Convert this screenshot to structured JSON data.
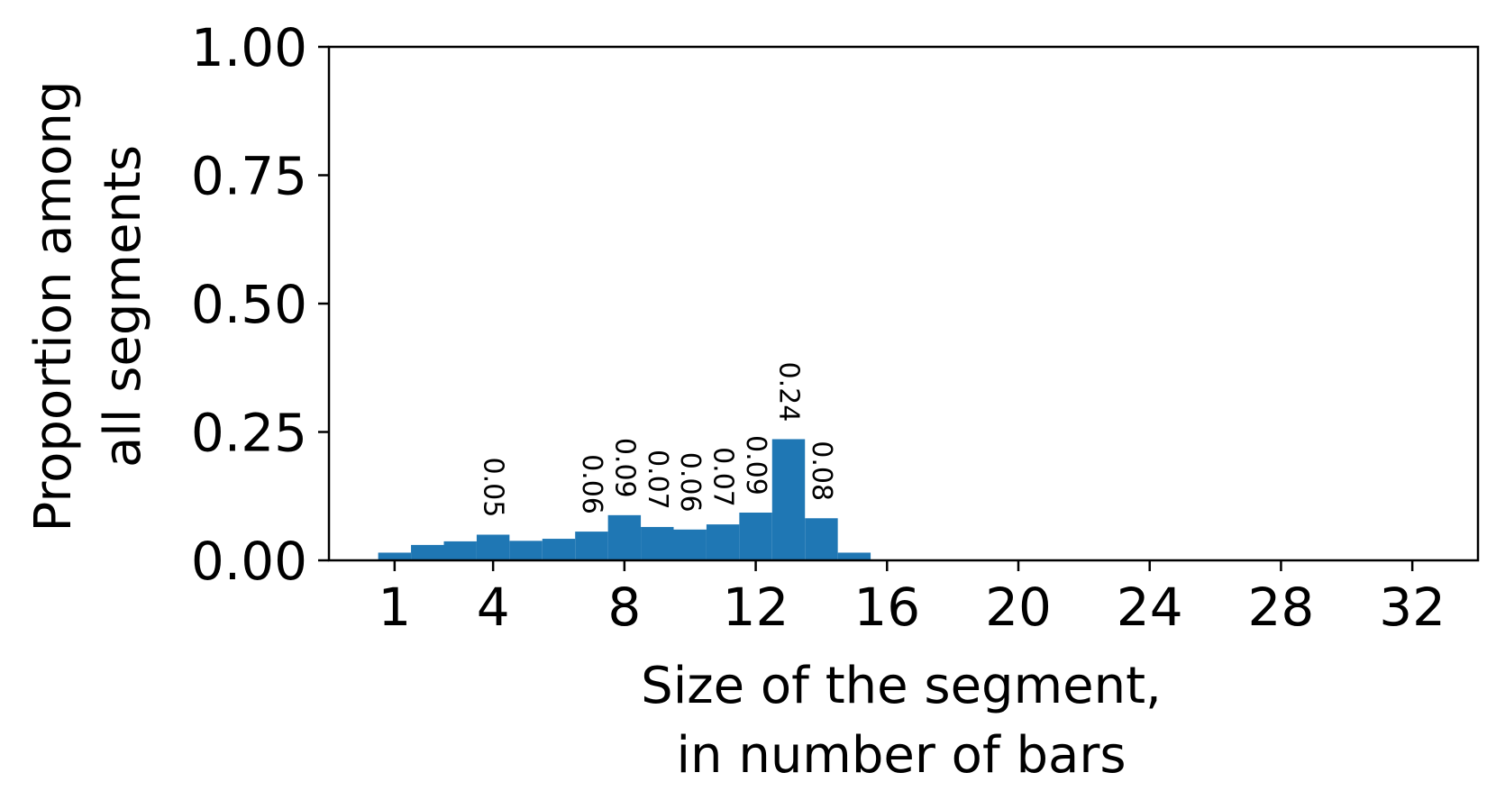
{
  "chart_data": {
    "type": "bar",
    "x": [
      1,
      2,
      3,
      4,
      5,
      6,
      7,
      8,
      9,
      10,
      11,
      12,
      13,
      14,
      15,
      16,
      17,
      18,
      19,
      20,
      21,
      22,
      23,
      24,
      25,
      26,
      27,
      28,
      29,
      30,
      31,
      32
    ],
    "values": [
      0.015,
      0.03,
      0.037,
      0.05,
      0.038,
      0.042,
      0.056,
      0.088,
      0.065,
      0.06,
      0.07,
      0.093,
      0.236,
      0.082,
      0.015,
      0.001,
      0.0005,
      0.0005,
      0.0005,
      0.0005,
      0.0005,
      0.0005,
      0.0005,
      0.0005,
      0.0005,
      0.0005,
      0.0005,
      0.0005,
      0.0005,
      0.0005,
      0.0005,
      0.0005
    ],
    "data_labels": [
      "",
      "",
      "",
      "0.05",
      "",
      "",
      "0.06",
      "0.09",
      "0.07",
      "0.06",
      "0.07",
      "0.09",
      "0.24",
      "0.08",
      "",
      "",
      "",
      "",
      "",
      "",
      "",
      "",
      "",
      "",
      "",
      "",
      "",
      "",
      "",
      "",
      "",
      ""
    ],
    "xticks": [
      "1",
      "4",
      "8",
      "12",
      "16",
      "20",
      "24",
      "28",
      "32"
    ],
    "xtick_values": [
      1,
      4,
      8,
      12,
      16,
      20,
      24,
      28,
      32
    ],
    "yticks": [
      "0.00",
      "0.25",
      "0.50",
      "0.75",
      "1.00"
    ],
    "ytick_values": [
      0,
      0.25,
      0.5,
      0.75,
      1.0
    ],
    "xlabel_lines": [
      "Size of the segment,",
      "in number of bars"
    ],
    "ylabel_lines": [
      "Proportion among",
      "all segments"
    ],
    "xlim": [
      -1,
      34
    ],
    "ylim": [
      0,
      1
    ],
    "grid": false,
    "bar_color": "#1f77b4"
  }
}
